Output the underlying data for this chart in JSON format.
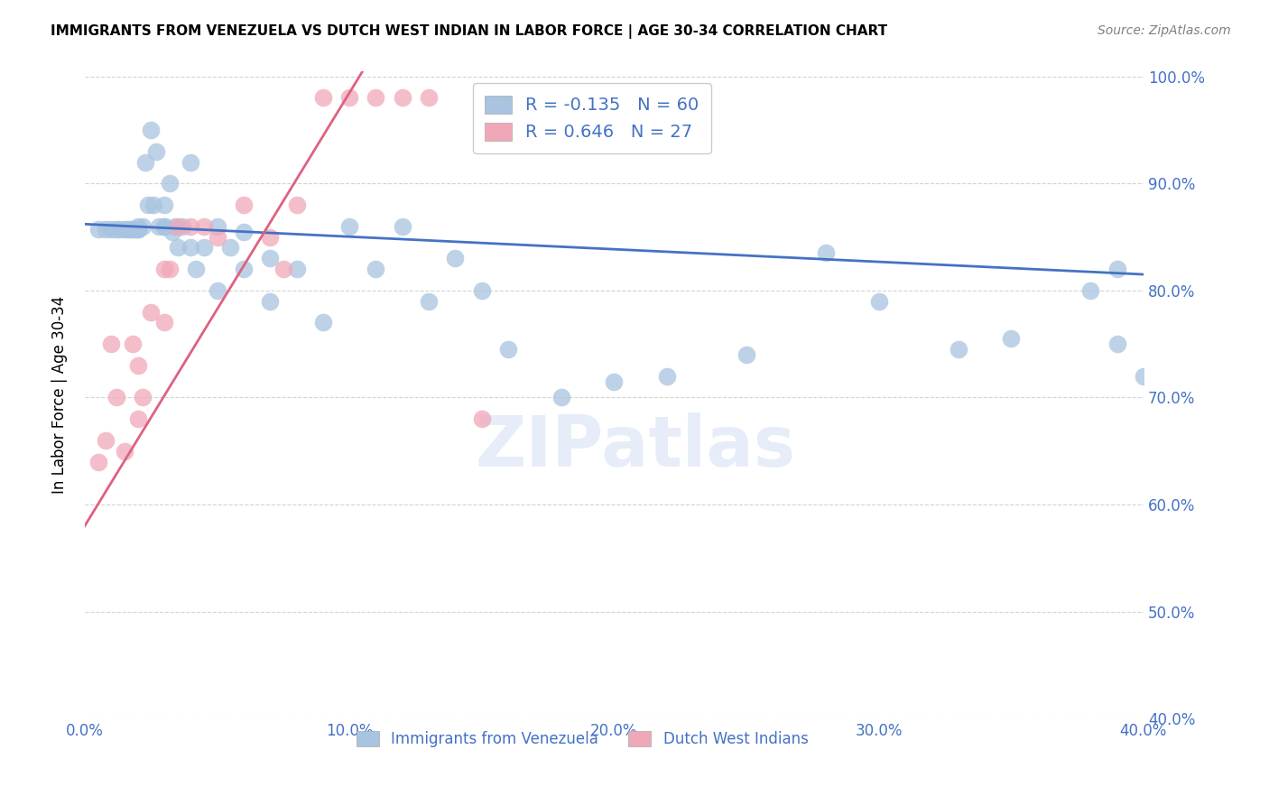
{
  "title": "IMMIGRANTS FROM VENEZUELA VS DUTCH WEST INDIAN IN LABOR FORCE | AGE 30-34 CORRELATION CHART",
  "source": "Source: ZipAtlas.com",
  "ylabel": "In Labor Force | Age 30-34",
  "blue_label": "Immigrants from Venezuela",
  "pink_label": "Dutch West Indians",
  "blue_R": -0.135,
  "blue_N": 60,
  "pink_R": 0.646,
  "pink_N": 27,
  "blue_color": "#a8c4e0",
  "pink_color": "#f0a8b8",
  "blue_line_color": "#4472c4",
  "pink_line_color": "#e06080",
  "legend_text_color": "#4472c4",
  "axis_label_color": "#4472c4",
  "watermark": "ZIPatlas",
  "xlim": [
    0.0,
    0.04
  ],
  "ylim": [
    0.4,
    1.005
  ],
  "xticks": [
    0.0,
    0.01,
    0.02,
    0.03,
    0.04
  ],
  "yticks_right": [
    0.4,
    0.5,
    0.6,
    0.7,
    0.8,
    0.9,
    1.0
  ],
  "yticks_right_labels": [
    "40.0%",
    "50.0%",
    "60.0%",
    "70.0%",
    "80.0%",
    "90.0%",
    "100.0%"
  ],
  "xtick_labels": [
    "0.0%",
    "10.0%",
    "20.0%",
    "30.0%",
    "40.0%"
  ],
  "blue_x": [
    0.0005,
    0.0008,
    0.001,
    0.0012,
    0.0013,
    0.0015,
    0.0016,
    0.0017,
    0.0018,
    0.0019,
    0.002,
    0.002,
    0.002,
    0.0022,
    0.0023,
    0.0024,
    0.0025,
    0.0026,
    0.0027,
    0.0028,
    0.003,
    0.003,
    0.003,
    0.0032,
    0.0033,
    0.0034,
    0.0035,
    0.0037,
    0.004,
    0.004,
    0.0042,
    0.0045,
    0.005,
    0.005,
    0.0055,
    0.006,
    0.006,
    0.007,
    0.007,
    0.008,
    0.009,
    0.01,
    0.011,
    0.012,
    0.013,
    0.014,
    0.015,
    0.016,
    0.018,
    0.02,
    0.022,
    0.025,
    0.028,
    0.03,
    0.033,
    0.035,
    0.038,
    0.039,
    0.039,
    0.04
  ],
  "blue_y": [
    0.857,
    0.857,
    0.857,
    0.857,
    0.857,
    0.857,
    0.857,
    0.857,
    0.857,
    0.857,
    0.86,
    0.857,
    0.857,
    0.86,
    0.92,
    0.88,
    0.95,
    0.88,
    0.93,
    0.86,
    0.86,
    0.88,
    0.86,
    0.9,
    0.855,
    0.86,
    0.84,
    0.86,
    0.84,
    0.92,
    0.82,
    0.84,
    0.8,
    0.86,
    0.84,
    0.855,
    0.82,
    0.83,
    0.79,
    0.82,
    0.77,
    0.86,
    0.82,
    0.86,
    0.79,
    0.83,
    0.8,
    0.745,
    0.7,
    0.715,
    0.72,
    0.74,
    0.835,
    0.79,
    0.745,
    0.755,
    0.8,
    0.82,
    0.75,
    0.72
  ],
  "pink_x": [
    0.0005,
    0.0008,
    0.001,
    0.0012,
    0.0015,
    0.0018,
    0.002,
    0.002,
    0.0022,
    0.0025,
    0.003,
    0.003,
    0.0032,
    0.0035,
    0.004,
    0.0045,
    0.005,
    0.006,
    0.007,
    0.0075,
    0.008,
    0.009,
    0.01,
    0.011,
    0.012,
    0.013,
    0.015
  ],
  "pink_y": [
    0.64,
    0.66,
    0.75,
    0.7,
    0.65,
    0.75,
    0.68,
    0.73,
    0.7,
    0.78,
    0.82,
    0.77,
    0.82,
    0.86,
    0.86,
    0.86,
    0.85,
    0.88,
    0.85,
    0.82,
    0.88,
    0.98,
    0.98,
    0.98,
    0.98,
    0.98,
    0.68
  ],
  "blue_trendline": [
    0.0,
    0.862,
    0.04,
    0.815
  ],
  "pink_trendline": [
    0.0,
    0.58,
    0.0105,
    1.005
  ],
  "grid_color": "#d3d3d3",
  "grid_style": "--"
}
